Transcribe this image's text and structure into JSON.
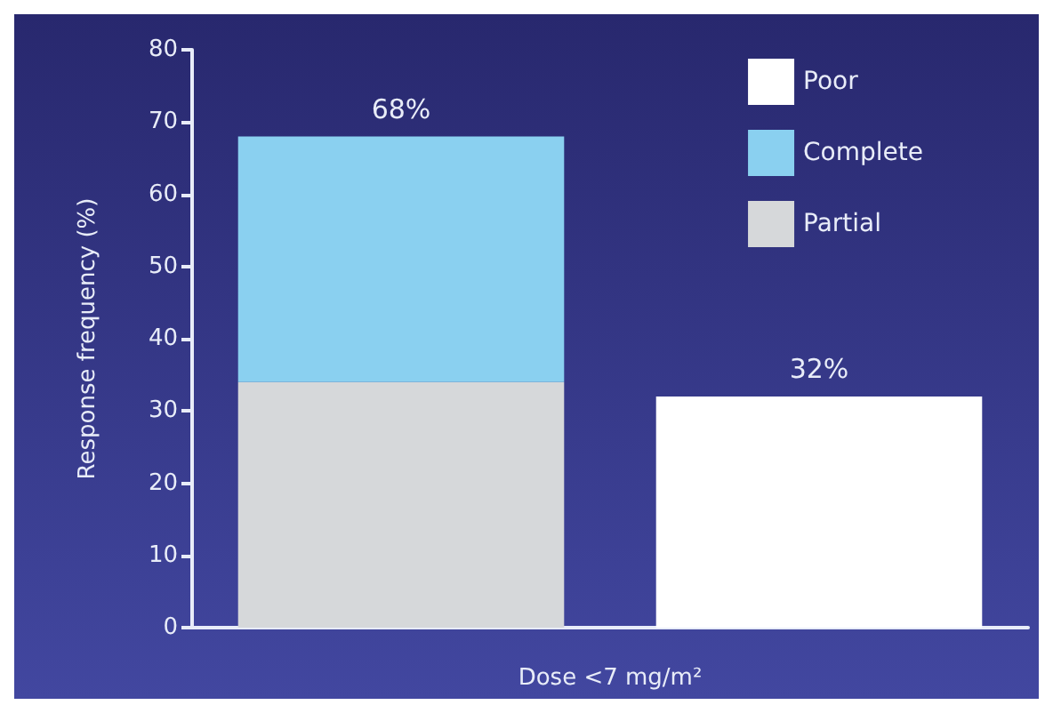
{
  "chart_data": {
    "type": "bar",
    "stacked": true,
    "xlabel": "Dose <7 mg/m²",
    "ylabel": "Response frequency (%)",
    "categories": [
      null,
      null
    ],
    "series": [
      {
        "name": "Partial",
        "color": "#d6d8da",
        "values": [
          34,
          null
        ]
      },
      {
        "name": "Complete",
        "color": "#8ad0f0",
        "values": [
          34,
          null
        ]
      },
      {
        "name": "Poor",
        "color": "#ffffff",
        "values": [
          null,
          32
        ]
      }
    ],
    "totals": [
      "68%",
      "32%"
    ],
    "ylim": [
      0,
      80
    ],
    "yticks": [
      0,
      10,
      20,
      30,
      40,
      50,
      60,
      70,
      80
    ],
    "grid": false,
    "legend": "top right"
  }
}
